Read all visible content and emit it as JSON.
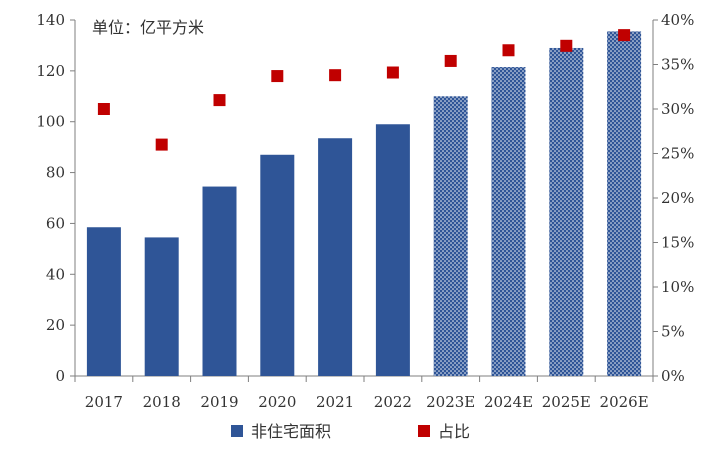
{
  "unit_text": "单位：亿平方米",
  "chart_data": {
    "type": "bar",
    "categories": [
      "2017",
      "2018",
      "2019",
      "2020",
      "2021",
      "2022",
      "2023E",
      "2024E",
      "2025E",
      "2026E"
    ],
    "series": [
      {
        "name": "非住宅面积",
        "kind": "bar",
        "axis": "left",
        "values": [
          58.5,
          54.5,
          74.5,
          87,
          93.5,
          99,
          110,
          121.5,
          129,
          135.5
        ],
        "estimate_from_index": 6
      },
      {
        "name": "占比",
        "kind": "marker",
        "axis": "right",
        "values": [
          0.3,
          0.26,
          0.31,
          0.337,
          0.338,
          0.341,
          0.354,
          0.366,
          0.371,
          0.383
        ]
      }
    ],
    "y_left": {
      "min": 0,
      "max": 140,
      "step": 20,
      "ticks": [
        "0",
        "20",
        "40",
        "60",
        "80",
        "100",
        "120",
        "140"
      ]
    },
    "y_right": {
      "min": 0,
      "max": 0.4,
      "step": 0.05,
      "ticks": [
        "0%",
        "5%",
        "10%",
        "15%",
        "20%",
        "25%",
        "30%",
        "35%",
        "40%"
      ]
    },
    "legend": {
      "position": "bottom",
      "items": [
        "非住宅面积",
        "占比"
      ]
    },
    "grid": false
  },
  "colors": {
    "bar": "#2f5597",
    "marker": "#c00000",
    "estimate_dot": "#ffffff",
    "axis": "#7f7f7f",
    "text": "#333333"
  }
}
